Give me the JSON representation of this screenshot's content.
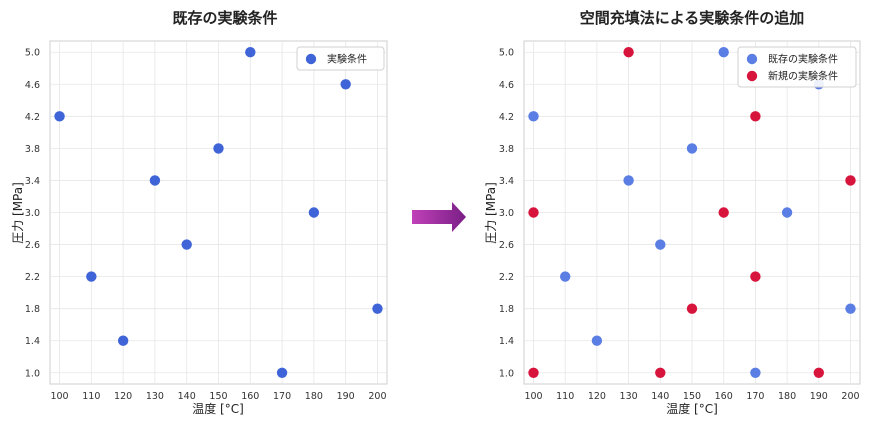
{
  "chart_data": [
    {
      "type": "scatter",
      "title": "既存の実験条件",
      "xlabel": "温度 [°C]",
      "ylabel": "圧力 [MPa]",
      "xlim": [
        97,
        203
      ],
      "ylim": [
        0.86,
        5.14
      ],
      "xticks": [
        "100",
        "110",
        "120",
        "130",
        "140",
        "150",
        "160",
        "170",
        "180",
        "190",
        "200"
      ],
      "yticks": [
        "1.0",
        "1.4",
        "1.8",
        "2.2",
        "2.6",
        "3.0",
        "3.4",
        "3.8",
        "4.2",
        "4.6",
        "5.0"
      ],
      "grid": true,
      "legend_position": "top-right",
      "series": [
        {
          "name": "実験条件",
          "color": "#3f64d8",
          "points": [
            {
              "x": 100,
              "y": 4.2
            },
            {
              "x": 110,
              "y": 2.2
            },
            {
              "x": 120,
              "y": 1.4
            },
            {
              "x": 130,
              "y": 3.4
            },
            {
              "x": 140,
              "y": 2.6
            },
            {
              "x": 150,
              "y": 3.8
            },
            {
              "x": 160,
              "y": 5.0
            },
            {
              "x": 170,
              "y": 1.0
            },
            {
              "x": 180,
              "y": 3.0
            },
            {
              "x": 190,
              "y": 4.6
            },
            {
              "x": 200,
              "y": 1.8
            }
          ]
        }
      ]
    },
    {
      "type": "scatter",
      "title": "空間充填法による実験条件の追加",
      "xlabel": "温度 [°C]",
      "ylabel": "圧力 [MPa]",
      "xlim": [
        97,
        203
      ],
      "ylim": [
        0.86,
        5.14
      ],
      "xticks": [
        "100",
        "110",
        "120",
        "130",
        "140",
        "150",
        "160",
        "170",
        "180",
        "190",
        "200"
      ],
      "yticks": [
        "1.0",
        "1.4",
        "1.8",
        "2.2",
        "2.6",
        "3.0",
        "3.4",
        "3.8",
        "4.2",
        "4.6",
        "5.0"
      ],
      "grid": true,
      "legend_position": "top-right",
      "series": [
        {
          "name": "既存の実験条件",
          "color": "#5b7ee5",
          "points": [
            {
              "x": 100,
              "y": 4.2
            },
            {
              "x": 110,
              "y": 2.2
            },
            {
              "x": 120,
              "y": 1.4
            },
            {
              "x": 130,
              "y": 3.4
            },
            {
              "x": 140,
              "y": 2.6
            },
            {
              "x": 150,
              "y": 3.8
            },
            {
              "x": 160,
              "y": 5.0
            },
            {
              "x": 170,
              "y": 1.0
            },
            {
              "x": 180,
              "y": 3.0
            },
            {
              "x": 190,
              "y": 4.6
            },
            {
              "x": 200,
              "y": 1.8
            }
          ]
        },
        {
          "name": "新規の実験条件",
          "color": "#d7143c",
          "points": [
            {
              "x": 100,
              "y": 3.0
            },
            {
              "x": 100,
              "y": 1.0
            },
            {
              "x": 130,
              "y": 5.0
            },
            {
              "x": 140,
              "y": 1.0
            },
            {
              "x": 150,
              "y": 1.8
            },
            {
              "x": 160,
              "y": 3.0
            },
            {
              "x": 170,
              "y": 4.2
            },
            {
              "x": 170,
              "y": 2.2
            },
            {
              "x": 190,
              "y": 1.0
            },
            {
              "x": 200,
              "y": 3.4
            }
          ]
        }
      ]
    }
  ],
  "arrow": {
    "color_start": "#c040b8",
    "color_end": "#7a1f86"
  }
}
